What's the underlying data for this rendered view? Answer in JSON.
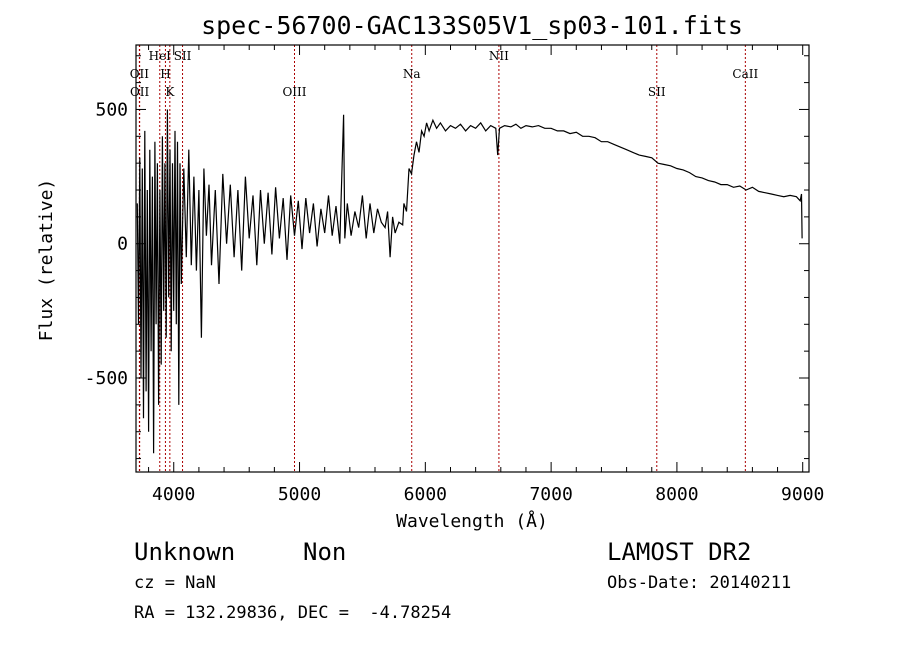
{
  "chart_data": {
    "type": "line",
    "title": "spec-56700-GAC133S05V1_sp03-101.fits",
    "xlabel": "Wavelength (Å)",
    "ylabel": "Flux (relative)",
    "xlim": [
      3700,
      9050
    ],
    "ylim": [
      -850,
      740
    ],
    "xticks": [
      4000,
      5000,
      6000,
      7000,
      8000,
      9000
    ],
    "yticks": [
      -500,
      0,
      500
    ],
    "grid": false,
    "line_color": "#000000",
    "marker_color": "#aa0000",
    "series": [
      {
        "points": [
          [
            3710,
            150
          ],
          [
            3720,
            -300
          ],
          [
            3730,
            320
          ],
          [
            3740,
            -500
          ],
          [
            3750,
            280
          ],
          [
            3760,
            -650
          ],
          [
            3770,
            420
          ],
          [
            3780,
            -550
          ],
          [
            3790,
            200
          ],
          [
            3800,
            -700
          ],
          [
            3810,
            350
          ],
          [
            3820,
            -400
          ],
          [
            3830,
            250
          ],
          [
            3840,
            -780
          ],
          [
            3850,
            380
          ],
          [
            3860,
            -300
          ],
          [
            3870,
            300
          ],
          [
            3880,
            -600
          ],
          [
            3890,
            200
          ],
          [
            3900,
            -450
          ],
          [
            3910,
            400
          ],
          [
            3920,
            -250
          ],
          [
            3930,
            300
          ],
          [
            3940,
            -350
          ],
          [
            3950,
            500
          ],
          [
            3960,
            -200
          ],
          [
            3970,
            350
          ],
          [
            3980,
            -400
          ],
          [
            3990,
            300
          ],
          [
            4000,
            -250
          ],
          [
            4010,
            420
          ],
          [
            4020,
            -300
          ],
          [
            4030,
            380
          ],
          [
            4040,
            -600
          ],
          [
            4050,
            300
          ],
          [
            4060,
            -150
          ],
          [
            4080,
            280
          ],
          [
            4100,
            -50
          ],
          [
            4120,
            350
          ],
          [
            4140,
            -80
          ],
          [
            4160,
            250
          ],
          [
            4180,
            -100
          ],
          [
            4200,
            200
          ],
          [
            4220,
            -350
          ],
          [
            4240,
            280
          ],
          [
            4260,
            30
          ],
          [
            4280,
            220
          ],
          [
            4300,
            -80
          ],
          [
            4330,
            200
          ],
          [
            4360,
            -150
          ],
          [
            4390,
            260
          ],
          [
            4420,
            0
          ],
          [
            4450,
            220
          ],
          [
            4480,
            -50
          ],
          [
            4510,
            200
          ],
          [
            4540,
            -100
          ],
          [
            4570,
            250
          ],
          [
            4600,
            20
          ],
          [
            4630,
            180
          ],
          [
            4660,
            -80
          ],
          [
            4690,
            200
          ],
          [
            4720,
            0
          ],
          [
            4750,
            190
          ],
          [
            4780,
            -40
          ],
          [
            4810,
            210
          ],
          [
            4840,
            20
          ],
          [
            4870,
            170
          ],
          [
            4900,
            -60
          ],
          [
            4930,
            180
          ],
          [
            4960,
            30
          ],
          [
            4990,
            160
          ],
          [
            5020,
            -20
          ],
          [
            5050,
            170
          ],
          [
            5080,
            40
          ],
          [
            5110,
            150
          ],
          [
            5140,
            -10
          ],
          [
            5170,
            130
          ],
          [
            5200,
            40
          ],
          [
            5230,
            180
          ],
          [
            5260,
            30
          ],
          [
            5290,
            140
          ],
          [
            5320,
            0
          ],
          [
            5350,
            480
          ],
          [
            5360,
            20
          ],
          [
            5380,
            150
          ],
          [
            5410,
            30
          ],
          [
            5440,
            120
          ],
          [
            5470,
            60
          ],
          [
            5500,
            180
          ],
          [
            5530,
            20
          ],
          [
            5560,
            150
          ],
          [
            5590,
            40
          ],
          [
            5620,
            130
          ],
          [
            5650,
            80
          ],
          [
            5680,
            60
          ],
          [
            5700,
            120
          ],
          [
            5720,
            -50
          ],
          [
            5740,
            100
          ],
          [
            5760,
            40
          ],
          [
            5790,
            80
          ],
          [
            5820,
            70
          ],
          [
            5830,
            150
          ],
          [
            5850,
            120
          ],
          [
            5870,
            280
          ],
          [
            5890,
            260
          ],
          [
            5910,
            330
          ],
          [
            5930,
            380
          ],
          [
            5950,
            340
          ],
          [
            5970,
            420
          ],
          [
            5990,
            400
          ],
          [
            6010,
            450
          ],
          [
            6030,
            420
          ],
          [
            6060,
            460
          ],
          [
            6090,
            430
          ],
          [
            6120,
            450
          ],
          [
            6160,
            420
          ],
          [
            6200,
            440
          ],
          [
            6240,
            430
          ],
          [
            6280,
            445
          ],
          [
            6320,
            420
          ],
          [
            6360,
            440
          ],
          [
            6400,
            430
          ],
          [
            6440,
            450
          ],
          [
            6480,
            420
          ],
          [
            6520,
            440
          ],
          [
            6560,
            430
          ],
          [
            6575,
            330
          ],
          [
            6590,
            430
          ],
          [
            6630,
            440
          ],
          [
            6680,
            435
          ],
          [
            6720,
            445
          ],
          [
            6760,
            430
          ],
          [
            6800,
            440
          ],
          [
            6850,
            435
          ],
          [
            6900,
            440
          ],
          [
            6950,
            430
          ],
          [
            7000,
            430
          ],
          [
            7050,
            420
          ],
          [
            7100,
            420
          ],
          [
            7150,
            410
          ],
          [
            7200,
            415
          ],
          [
            7250,
            400
          ],
          [
            7300,
            400
          ],
          [
            7350,
            395
          ],
          [
            7400,
            380
          ],
          [
            7450,
            380
          ],
          [
            7500,
            370
          ],
          [
            7550,
            360
          ],
          [
            7600,
            350
          ],
          [
            7650,
            340
          ],
          [
            7700,
            330
          ],
          [
            7750,
            325
          ],
          [
            7800,
            320
          ],
          [
            7850,
            300
          ],
          [
            7900,
            295
          ],
          [
            7950,
            290
          ],
          [
            8000,
            280
          ],
          [
            8050,
            275
          ],
          [
            8100,
            265
          ],
          [
            8150,
            250
          ],
          [
            8200,
            245
          ],
          [
            8250,
            235
          ],
          [
            8300,
            230
          ],
          [
            8350,
            220
          ],
          [
            8400,
            220
          ],
          [
            8450,
            210
          ],
          [
            8500,
            215
          ],
          [
            8550,
            200
          ],
          [
            8600,
            210
          ],
          [
            8650,
            195
          ],
          [
            8700,
            190
          ],
          [
            8750,
            185
          ],
          [
            8800,
            180
          ],
          [
            8850,
            175
          ],
          [
            8900,
            180
          ],
          [
            8950,
            175
          ],
          [
            8980,
            160
          ],
          [
            8990,
            185
          ],
          [
            8995,
            20
          ]
        ]
      }
    ],
    "emission_lines": [
      {
        "label": "OII",
        "wavelength": 3727,
        "row": 1
      },
      {
        "label": "OII",
        "wavelength": 3729,
        "row": 2
      },
      {
        "label": "HeI",
        "wavelength": 3889,
        "row": 0
      },
      {
        "label": "H",
        "wavelength": 3934,
        "row": 1
      },
      {
        "label": "K",
        "wavelength": 3969,
        "row": 2
      },
      {
        "label": "SII",
        "wavelength": 4070,
        "row": 0
      },
      {
        "label": "OIII",
        "wavelength": 4960,
        "row": 2
      },
      {
        "label": "Na",
        "wavelength": 5892,
        "row": 1
      },
      {
        "label": "NII",
        "wavelength": 6585,
        "row": 0
      },
      {
        "label": "SII",
        "wavelength": 7840,
        "row": 2
      },
      {
        "label": "CaII",
        "wavelength": 8544,
        "row": 1
      }
    ]
  },
  "info": {
    "class": "Unknown",
    "subclass": "Non",
    "survey": "LAMOST DR2",
    "cz": "cz = NaN",
    "obs_date": "Obs-Date: 20140211",
    "radec": "RA = 132.29836, DEC =  -4.78254"
  }
}
